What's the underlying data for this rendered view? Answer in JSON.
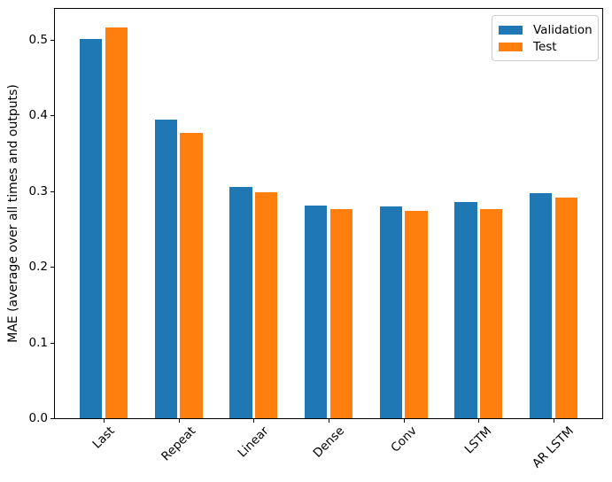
{
  "chart_data": {
    "type": "bar",
    "title": "",
    "xlabel": "",
    "ylabel": "MAE (average over all times and outputs)",
    "categories": [
      "Last",
      "Repeat",
      "Linear",
      "Dense",
      "Conv",
      "LSTM",
      "AR LSTM"
    ],
    "series": [
      {
        "name": "Validation",
        "color": "#1f77b4",
        "values": [
          0.501,
          0.395,
          0.306,
          0.281,
          0.28,
          0.286,
          0.298
        ]
      },
      {
        "name": "Test",
        "color": "#ff7f0e",
        "values": [
          0.516,
          0.377,
          0.299,
          0.276,
          0.274,
          0.276,
          0.292
        ]
      }
    ],
    "ylim": [
      0,
      0.541
    ],
    "xlim": [
      -0.652,
      6.652
    ],
    "yticks": [
      0.0,
      0.1,
      0.2,
      0.3,
      0.4,
      0.5
    ],
    "ytick_labels": [
      "0.0",
      "0.1",
      "0.2",
      "0.3",
      "0.4",
      "0.5"
    ],
    "bar_width": 0.3,
    "bar_group_offset": 0.17,
    "xtick_rotation_deg": 45,
    "grid": false,
    "legend_position": "upper-right"
  }
}
